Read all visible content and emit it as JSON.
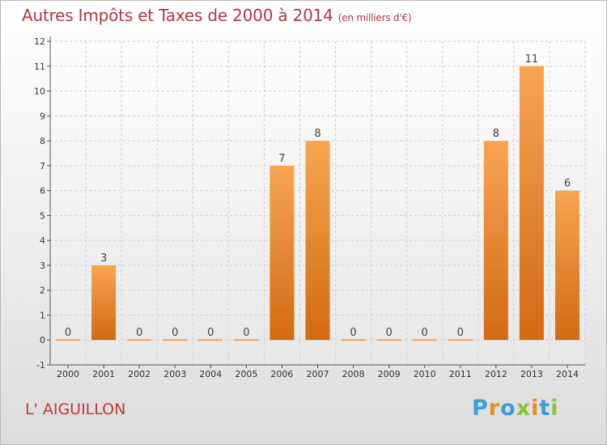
{
  "chart_data": {
    "type": "bar",
    "title": "Autres Impôts et Taxes de 2000 à 2014",
    "subtitle": "(en milliers d'€)",
    "categories": [
      "2000",
      "2001",
      "2002",
      "2003",
      "2004",
      "2005",
      "2006",
      "2007",
      "2008",
      "2009",
      "2010",
      "2011",
      "2012",
      "2013",
      "2014"
    ],
    "values": [
      0,
      3,
      0,
      0,
      0,
      0,
      7,
      8,
      0,
      0,
      0,
      0,
      8,
      11,
      6
    ],
    "yticks": [
      "-1",
      "0",
      "1",
      "2",
      "3",
      "4",
      "5",
      "6",
      "7",
      "8",
      "9",
      "10",
      "11",
      "12"
    ],
    "ylim": [
      -1,
      12
    ],
    "grid": true,
    "bar_color_top": "#f7a552",
    "bar_color_bottom": "#d26a12"
  },
  "footer": {
    "city": "L' AIGUILLON",
    "brand": "Proxiti",
    "brand_colors": [
      "#3aa0d8",
      "#e8901c",
      "#3aa0d8",
      "#8cc43c",
      "#e8901c",
      "#3aa0d8",
      "#8cc43c"
    ]
  }
}
